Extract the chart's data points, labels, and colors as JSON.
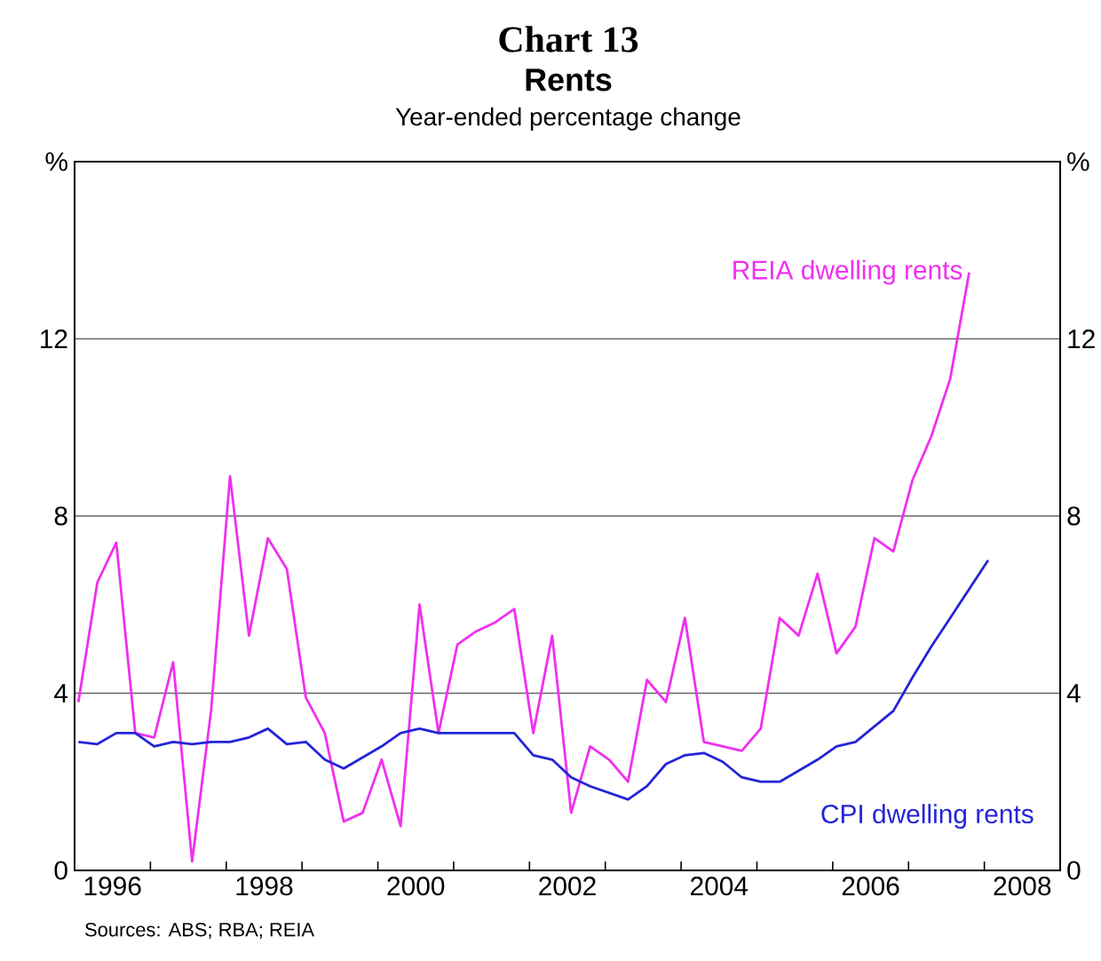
{
  "chart_data": {
    "type": "line",
    "title": "Chart 13",
    "subtitle": "Rents",
    "annotations": [
      "Year-ended percentage change",
      "Sources: ABS; RBA; REIA"
    ],
    "series": [
      {
        "name": "REIA dwelling rents",
        "color": "#f030f0",
        "x": [
          1996.05,
          1996.3,
          1996.55,
          1996.8,
          1997.05,
          1997.3,
          1997.55,
          1997.8,
          1998.05,
          1998.3,
          1998.55,
          1998.8,
          1999.05,
          1999.3,
          1999.55,
          1999.8,
          2000.05,
          2000.3,
          2000.55,
          2000.8,
          2001.05,
          2001.3,
          2001.55,
          2001.8,
          2002.05,
          2002.3,
          2002.55,
          2002.8,
          2003.05,
          2003.3,
          2003.55,
          2003.8,
          2004.05,
          2004.3,
          2004.55,
          2004.8,
          2005.05,
          2005.3,
          2005.55,
          2005.8,
          2006.05,
          2006.3,
          2006.55,
          2006.8,
          2007.05,
          2007.3,
          2007.55,
          2007.8
        ],
        "values": [
          3.8,
          6.5,
          7.4,
          3.1,
          3.0,
          4.7,
          0.2,
          3.6,
          8.9,
          5.3,
          7.5,
          6.8,
          3.9,
          3.1,
          1.1,
          1.3,
          2.5,
          1.0,
          6.0,
          3.1,
          5.1,
          5.4,
          5.6,
          5.9,
          3.1,
          5.3,
          1.3,
          2.8,
          2.5,
          2.0,
          4.3,
          3.8,
          5.7,
          2.9,
          2.8,
          2.7,
          3.2,
          5.7,
          5.3,
          6.7,
          4.9,
          5.5,
          7.5,
          7.2,
          8.8,
          9.8,
          11.1,
          13.5
        ]
      },
      {
        "name": "CPI dwelling rents",
        "color": "#2424d8",
        "x": [
          1996.05,
          1996.3,
          1996.55,
          1996.8,
          1997.05,
          1997.3,
          1997.55,
          1997.8,
          1998.05,
          1998.3,
          1998.55,
          1998.8,
          1999.05,
          1999.3,
          1999.55,
          1999.8,
          2000.05,
          2000.3,
          2000.55,
          2000.8,
          2001.05,
          2001.3,
          2001.55,
          2001.8,
          2002.05,
          2002.3,
          2002.55,
          2002.8,
          2003.05,
          2003.3,
          2003.55,
          2003.8,
          2004.05,
          2004.3,
          2004.55,
          2004.8,
          2005.05,
          2005.3,
          2005.55,
          2005.8,
          2006.05,
          2006.3,
          2006.55,
          2006.8,
          2007.05,
          2007.3,
          2007.55,
          2007.8,
          2008.05
        ],
        "values": [
          2.9,
          2.85,
          3.1,
          3.1,
          2.8,
          2.9,
          2.85,
          2.9,
          2.9,
          3.0,
          3.2,
          2.85,
          2.9,
          2.5,
          2.3,
          2.55,
          2.8,
          3.1,
          3.2,
          3.1,
          3.1,
          3.1,
          3.1,
          3.1,
          2.6,
          2.5,
          2.1,
          1.9,
          1.75,
          1.6,
          1.9,
          2.4,
          2.6,
          2.65,
          2.45,
          2.1,
          2.0,
          2.0,
          2.25,
          2.5,
          2.8,
          2.9,
          3.25,
          3.6,
          4.35,
          5.05,
          5.7,
          6.35,
          7.0
        ]
      }
    ],
    "xlim": [
      1996,
      2009
    ],
    "xticks": [
      {
        "value": 1996,
        "label": null
      },
      {
        "value": 1996.5,
        "label": "1996"
      },
      {
        "value": 1997,
        "label": null
      },
      {
        "value": 1998,
        "label": null
      },
      {
        "value": 1998.5,
        "label": "1998"
      },
      {
        "value": 1999,
        "label": null
      },
      {
        "value": 2000,
        "label": null
      },
      {
        "value": 2000.5,
        "label": "2000"
      },
      {
        "value": 2001,
        "label": null
      },
      {
        "value": 2002,
        "label": null
      },
      {
        "value": 2002.5,
        "label": "2002"
      },
      {
        "value": 2003,
        "label": null
      },
      {
        "value": 2004,
        "label": null
      },
      {
        "value": 2004.5,
        "label": "2004"
      },
      {
        "value": 2005,
        "label": null
      },
      {
        "value": 2006,
        "label": null
      },
      {
        "value": 2006.5,
        "label": "2006"
      },
      {
        "value": 2007,
        "label": null
      },
      {
        "value": 2008,
        "label": null
      },
      {
        "value": 2008.5,
        "label": "2008"
      },
      {
        "value": 2009,
        "label": null
      }
    ],
    "ylim": [
      0,
      16
    ],
    "yticks": [
      0,
      4,
      8,
      12,
      {
        "value": 16,
        "label": "%"
      }
    ],
    "y2lim": [
      0,
      16
    ],
    "y2ticks": [
      0,
      4,
      8,
      12,
      {
        "value": 16,
        "label": "%"
      }
    ],
    "grid": "y"
  }
}
